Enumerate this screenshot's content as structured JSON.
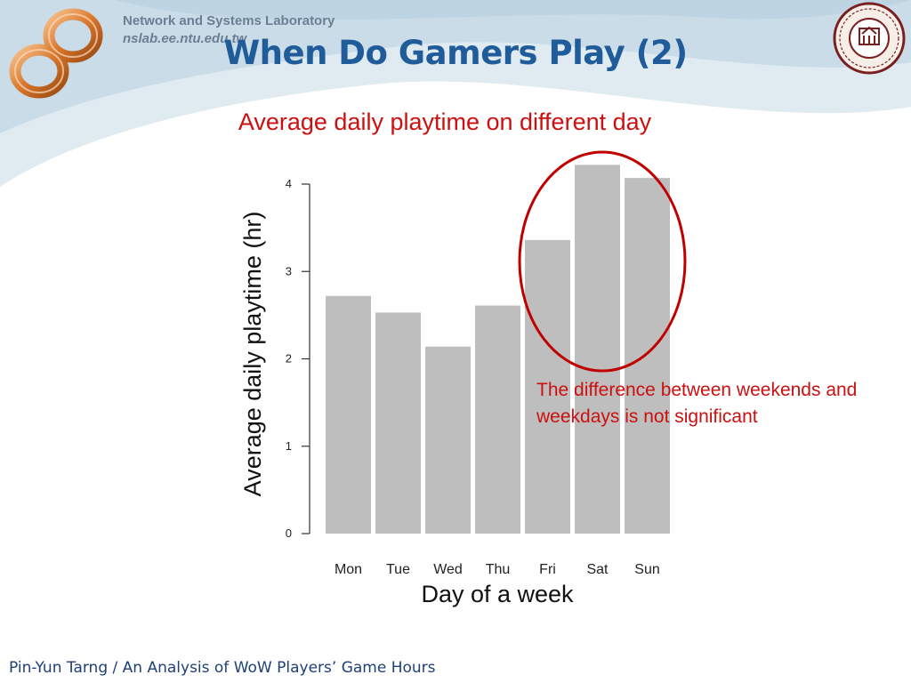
{
  "header": {
    "lab_name": "Network and Systems Laboratory",
    "lab_url": "nslab.ee.ntu.edu.tw"
  },
  "slide": {
    "title": "When Do Gamers Play (2)"
  },
  "chart_data": {
    "type": "bar",
    "title": "Average daily playtime on different day",
    "xlabel": "Day of a week",
    "ylabel": "Average daily playtime (hr)",
    "categories": [
      "Mon",
      "Tue",
      "Wed",
      "Thu",
      "Fri",
      "Sat",
      "Sun"
    ],
    "values": [
      2.72,
      2.53,
      2.14,
      2.61,
      3.36,
      4.22,
      4.07
    ],
    "yticks": [
      0,
      1,
      2,
      3,
      4
    ],
    "ylim": [
      0,
      4.25
    ],
    "bar_color": "#bebebe",
    "grid": false,
    "highlight": {
      "categories": [
        "Fri",
        "Sat",
        "Sun"
      ],
      "shape": "ellipse",
      "color": "#c00000"
    }
  },
  "annotation": {
    "text": "The difference between weekends and weekdays is not significant",
    "color": "#cc1010"
  },
  "footer": {
    "text": "Pin-Yun Tarng / An Analysis of WoW Players’ Game Hours"
  },
  "colors": {
    "title_blue": "#1f5c99",
    "accent_red": "#cc1010",
    "footer_navy": "#1f3f78",
    "lab_gray": "#6b7f93"
  }
}
